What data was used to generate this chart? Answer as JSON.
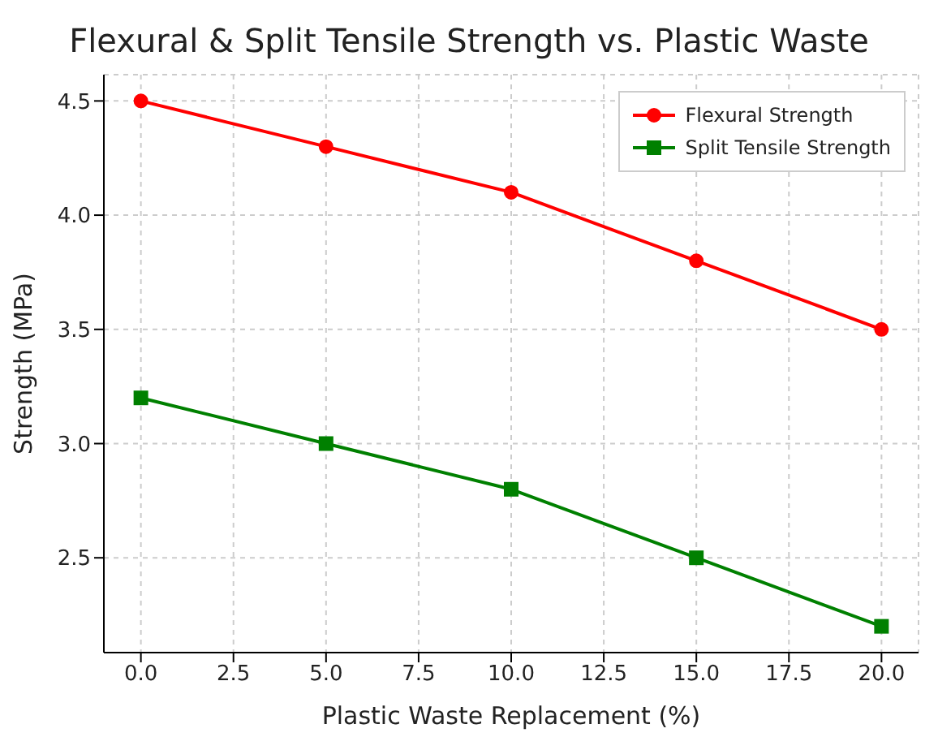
{
  "chart_data": {
    "type": "line",
    "title": "Flexural & Split Tensile Strength vs. Plastic Waste",
    "xlabel": "Plastic Waste Replacement (%)",
    "ylabel": "Strength (MPa)",
    "x": [
      0,
      5,
      10,
      15,
      20
    ],
    "series": [
      {
        "name": "Flexural Strength",
        "color": "#ff0000",
        "marker": "circle",
        "values": [
          4.5,
          4.3,
          4.1,
          3.8,
          3.5
        ]
      },
      {
        "name": "Split Tensile Strength",
        "color": "#008000",
        "marker": "square",
        "values": [
          3.2,
          3.0,
          2.8,
          2.5,
          2.2
        ]
      }
    ],
    "xlim": [
      -1,
      21
    ],
    "xticks": [
      {
        "value": 0,
        "label": "0.0"
      },
      {
        "value": 2.5,
        "label": "2.5"
      },
      {
        "value": 5,
        "label": "5.0"
      },
      {
        "value": 7.5,
        "label": "7.5"
      },
      {
        "value": 10,
        "label": "10.0"
      },
      {
        "value": 12.5,
        "label": "12.5"
      },
      {
        "value": 15,
        "label": "15.0"
      },
      {
        "value": 17.5,
        "label": "17.5"
      },
      {
        "value": 20,
        "label": "20.0"
      }
    ],
    "ylim": [
      2.085,
      4.615
    ],
    "yticks": [
      {
        "value": 2.5,
        "label": "2.5"
      },
      {
        "value": 3,
        "label": "3.0"
      },
      {
        "value": 3.5,
        "label": "3.5"
      },
      {
        "value": 4,
        "label": "4.0"
      },
      {
        "value": 4.5,
        "label": "4.5"
      }
    ],
    "grid": true,
    "legend": "top right",
    "line_style": "solid"
  }
}
